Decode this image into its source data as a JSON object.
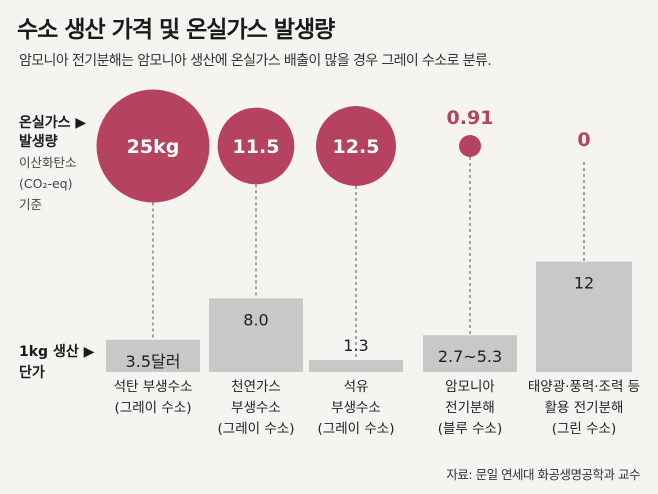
{
  "title": "수소 생산 가격 및 온실가스 발생량",
  "subtitle": "암모니아 전기분해는 암모니아 생산에 온실가스 배출이 많을 경우 그레이 수소로 분류.",
  "legend": {
    "emission_label_lines": [
      "온실가스 ▶",
      "발생량"
    ],
    "emission_unit_lines": [
      "이산화탄소",
      "(CO₂-eq)",
      "기준"
    ],
    "cost_label_lines": [
      "1kg 생산 ▶",
      "단가"
    ]
  },
  "source": "자료: 문일 연세대 화공생명공학과 교수",
  "colors": {
    "bubble": "#b5435f",
    "bar": "#c8c8c8",
    "background": "#f6f4f1",
    "dashed": "#555555"
  },
  "chart_data": {
    "type": "bar",
    "categories": [
      [
        "석탄 부생수소",
        "(그레이 수소)"
      ],
      [
        "천연가스",
        "부생수소",
        "(그레이 수소)"
      ],
      [
        "석유",
        "부생수소",
        "(그레이 수소)"
      ],
      [
        "암모니아",
        "전기분해",
        "(블루 수소)"
      ],
      [
        "태양광·풍력·조력 등",
        "활용 전기분해",
        "(그린 수소)"
      ]
    ],
    "series": [
      {
        "name": "1kg 생산 단가",
        "unit": "달러",
        "values": [
          3.5,
          8.0,
          1.3,
          4.0,
          12
        ],
        "labels": [
          "3.5달러",
          "8.0",
          "1.3",
          "2.7~5.3",
          "12"
        ]
      },
      {
        "name": "온실가스 발생량",
        "unit": "kg",
        "values": [
          25,
          11.5,
          12.5,
          0.91,
          0
        ],
        "labels": [
          "25kg",
          "11.5",
          "12.5",
          "0.91",
          "0"
        ]
      }
    ]
  }
}
